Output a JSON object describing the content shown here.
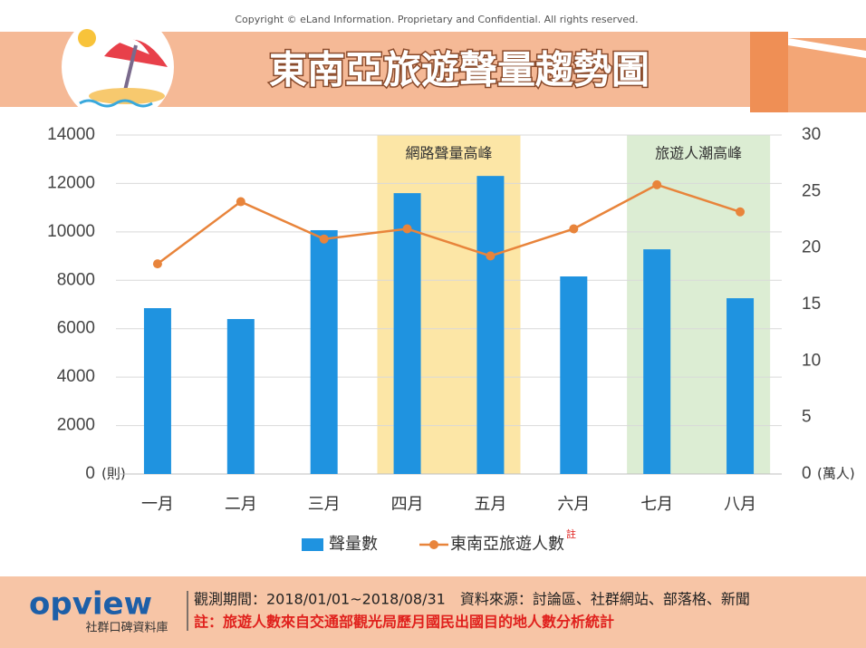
{
  "header": {
    "copyright": "Copyright © eLand Information. Proprietary and Confidential. All rights reserved.",
    "title": "東南亞旅遊聲量趨勢圖"
  },
  "chart_data": {
    "type": "bar",
    "categories": [
      "一月",
      "二月",
      "三月",
      "四月",
      "五月",
      "六月",
      "七月",
      "八月"
    ],
    "series": [
      {
        "name": "聲量數",
        "color": "#1f93e0",
        "values": [
          6850,
          6400,
          10070,
          11600,
          12310,
          8160,
          9280,
          7260
        ]
      },
      {
        "name": "東南亞旅遊人數",
        "name_note": "註",
        "type": "line",
        "axis": "y2",
        "color": "#e8843b",
        "values": [
          18.6,
          24.1,
          20.8,
          21.7,
          19.3,
          21.7,
          25.6,
          23.2
        ]
      }
    ],
    "ylim": [
      0,
      14000
    ],
    "yticks": [
      0,
      2000,
      4000,
      6000,
      8000,
      10000,
      12000,
      14000
    ],
    "y_unit": "(則)",
    "y2lim": [
      0,
      30
    ],
    "y2ticks": [
      0,
      5,
      10,
      15,
      20,
      25,
      30
    ],
    "y2_unit": "(萬人)",
    "grid": true,
    "highlights": [
      {
        "label": "網路聲量高峰",
        "from": "四月",
        "to": "五月",
        "color": "#fce6a6"
      },
      {
        "label": "旅遊人潮高峰",
        "from": "七月",
        "to": "八月",
        "color": "#dcedd3"
      }
    ]
  },
  "footer": {
    "logo": "opview",
    "logo_sub": "社群口碑資料庫",
    "line1": "觀測期間：2018/01/01~2018/08/31　資料來源：討論區、社群網站、部落格、新聞",
    "line2": "註：旅遊人數來自交通部觀光局歷月國民出國目的地人數分析統計"
  }
}
